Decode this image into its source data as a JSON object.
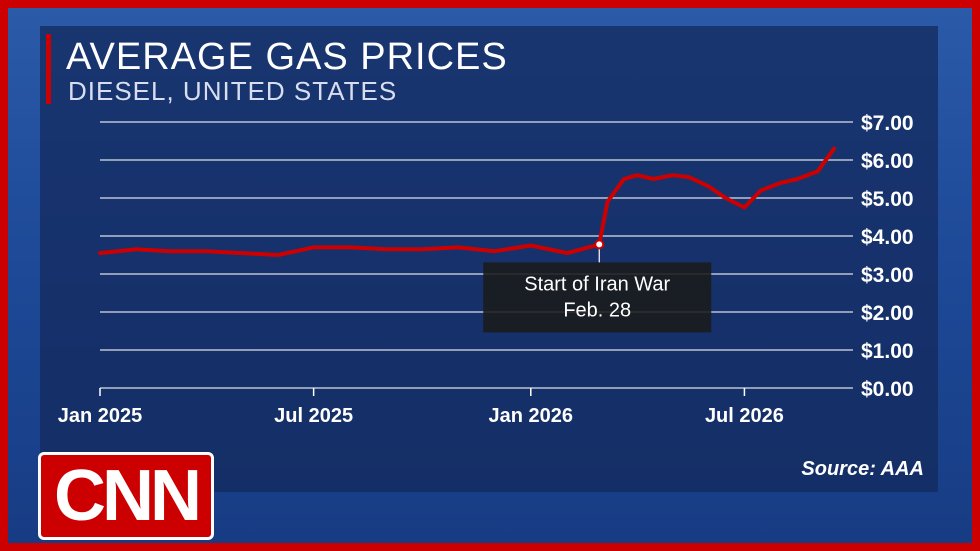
{
  "header": {
    "title": "AVERAGE GAS PRICES",
    "subtitle": "DIESEL, UNITED STATES"
  },
  "source": "Source: AAA",
  "logo": {
    "text": "CNN",
    "name": "cnn-logo"
  },
  "colors": {
    "line": "#cc0000",
    "grid": "#ffffff",
    "frame": "#cc0000"
  },
  "chart_data": {
    "type": "line",
    "title": "AVERAGE GAS PRICES",
    "subtitle": "DIESEL, UNITED STATES",
    "xlabel": "",
    "ylabel": "",
    "x_ticks": [
      "Jan 2025",
      "Jul 2025",
      "Jan 2026",
      "Jul 2026"
    ],
    "y_ticks": [
      "$0.00",
      "$1.00",
      "$2.00",
      "$3.00",
      "$4.00",
      "$5.00",
      "$6.00",
      "$7.00"
    ],
    "ylim": [
      0,
      7
    ],
    "grid": true,
    "series": [
      {
        "x": [
          "2025-01-01",
          "2025-02-01",
          "2025-03-01",
          "2025-04-01",
          "2025-05-01",
          "2025-06-01",
          "2025-07-01",
          "2025-08-01",
          "2025-09-01",
          "2025-10-01",
          "2025-11-01",
          "2025-12-01",
          "2026-01-01",
          "2026-02-01",
          "2026-02-28",
          "2026-03-07",
          "2026-03-21",
          "2026-04-01",
          "2026-04-15",
          "2026-05-01",
          "2026-05-15",
          "2026-06-01",
          "2026-06-15",
          "2026-07-01",
          "2026-07-15",
          "2026-08-01",
          "2026-08-15",
          "2026-09-01",
          "2026-09-15"
        ],
        "values": [
          3.55,
          3.65,
          3.6,
          3.6,
          3.55,
          3.5,
          3.7,
          3.7,
          3.65,
          3.65,
          3.7,
          3.6,
          3.75,
          3.55,
          3.78,
          4.9,
          5.5,
          5.6,
          5.5,
          5.6,
          5.55,
          5.3,
          5.0,
          4.75,
          5.2,
          5.4,
          5.5,
          5.7,
          6.3
        ]
      }
    ],
    "annotations": [
      {
        "x": "2026-02-28",
        "y": 3.78,
        "text_lines": [
          "Start of Iran War",
          "Feb. 28"
        ]
      }
    ]
  }
}
